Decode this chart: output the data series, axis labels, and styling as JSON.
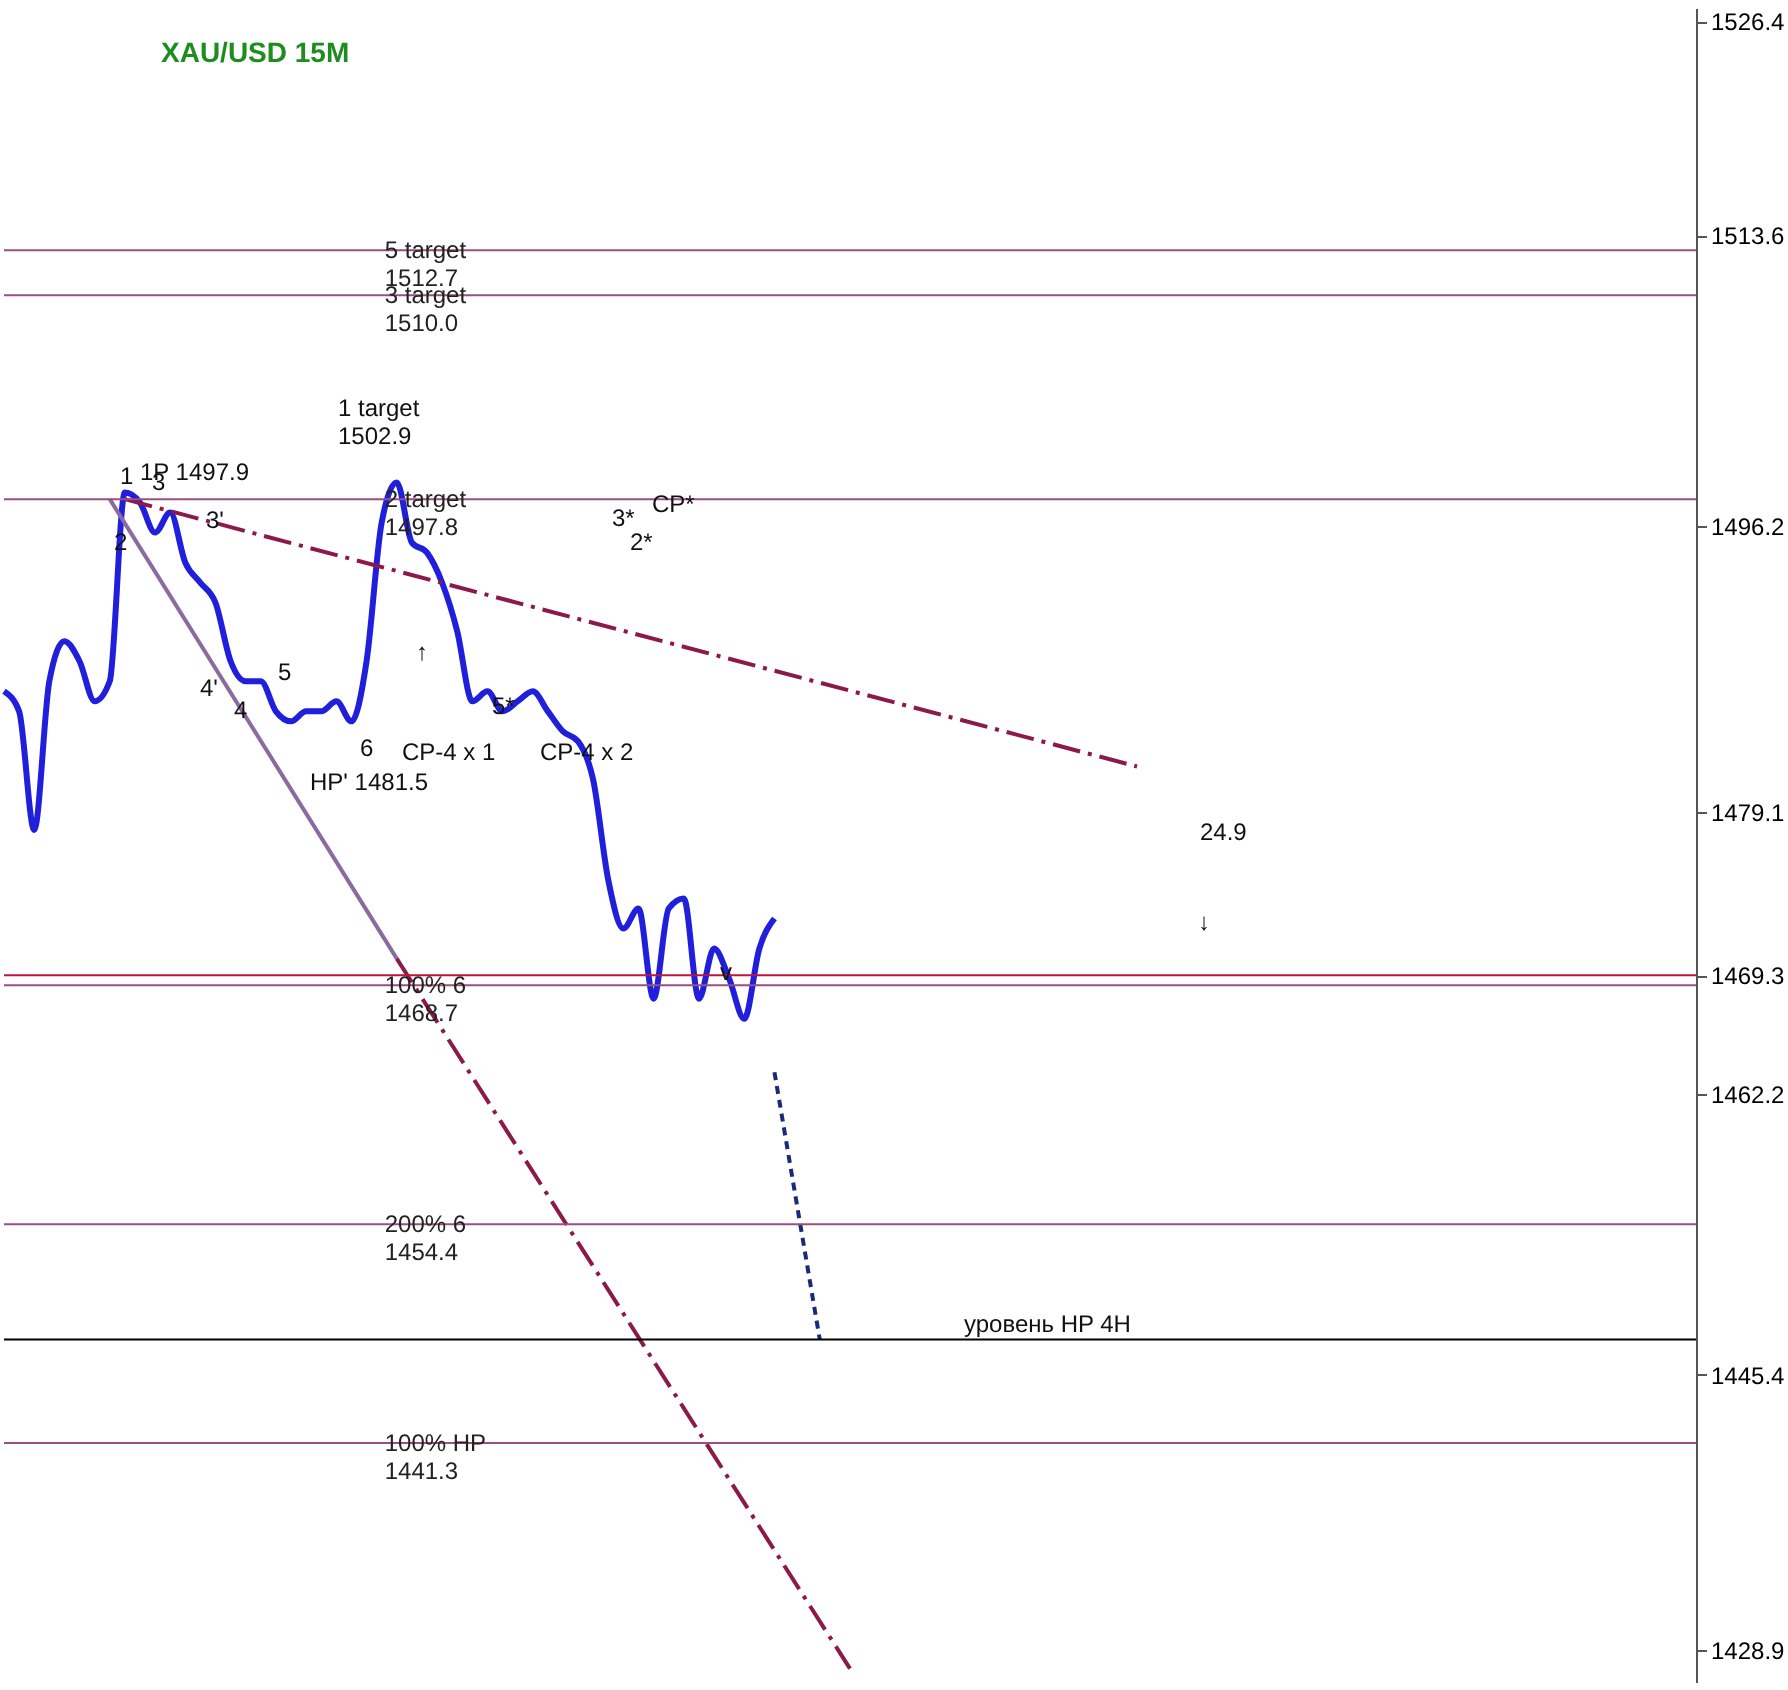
{
  "chart_data": {
    "type": "line",
    "title": "XAU/USD 15M",
    "categories": [
      null,
      null,
      null,
      null,
      null,
      null,
      null,
      null,
      null,
      null,
      null,
      null,
      null,
      null,
      null,
      null,
      null,
      null,
      null,
      null,
      null,
      null,
      null,
      null,
      null,
      null,
      null,
      null,
      null,
      null,
      null,
      null,
      null,
      null,
      null,
      null,
      null,
      null,
      null,
      null,
      null,
      null,
      null,
      null,
      null,
      null,
      null,
      null,
      null,
      null,
      null,
      null,
      null,
      null,
      null,
      null,
      null,
      null,
      null,
      null,
      null,
      null,
      null,
      null,
      null,
      null,
      null,
      null,
      null,
      null,
      null,
      null,
      null,
      null,
      null,
      null,
      null,
      null,
      null,
      null,
      null,
      null,
      null,
      null,
      null,
      null,
      null,
      null,
      null,
      null,
      null,
      null,
      null,
      null,
      null,
      null,
      null,
      null,
      null,
      null,
      null,
      null,
      null,
      null,
      null,
      null,
      null,
      null,
      null,
      null,
      null,
      null,
      null
    ],
    "ylim": [
      1427.0,
      1527.2
    ],
    "yticks": [
      1428.9,
      1445.4,
      1462.2,
      1469.3,
      1479.1,
      1496.2,
      1513.6,
      1526.4
    ],
    "tick_labels": "y",
    "grid": false,
    "marker": "none",
    "series": [
      {
        "color": "#1f1fdc",
        "line_style": "solid",
        "values": [
          1486.3,
          1485.1,
          1478.0,
          1486.9,
          1489.3,
          1488.1,
          1485.7,
          1486.9,
          1498.2,
          1497.6,
          1495.8,
          1497.0,
          1494.0,
          1492.8,
          1491.6,
          1488.1,
          1486.9,
          1486.9,
          1485.1,
          1484.5,
          1485.1,
          1485.1,
          1485.7,
          1484.5,
          1488.1,
          1496.4,
          1498.8,
          1495.2,
          1494.6,
          1492.8,
          1489.9,
          1485.7,
          1486.3,
          1485.1,
          1485.7,
          1486.3,
          1485.1,
          1483.9,
          1483.3,
          1481.0,
          1475.0,
          1472.1,
          1473.3,
          1467.9,
          1473.3,
          1473.9,
          1467.9,
          1470.9,
          1469.1,
          1466.7,
          1470.9,
          1472.7,
          null,
          null,
          null,
          null,
          null,
          null,
          null,
          null,
          null,
          null,
          null,
          null,
          null,
          null,
          null,
          null,
          null,
          null,
          null,
          null,
          null,
          null,
          null,
          null,
          null,
          null,
          null,
          null,
          null,
          null,
          null,
          null,
          null,
          null,
          null,
          null,
          null,
          null,
          null,
          null,
          null,
          null,
          null,
          null,
          null,
          null,
          null,
          null,
          null,
          null,
          null,
          null,
          null,
          null,
          null,
          null,
          null,
          null,
          null,
          null,
          null
        ]
      },
      {
        "color": "#8b1a4a",
        "line_style": "dashed",
        "values": [
          null,
          null,
          null,
          null,
          null,
          null,
          null,
          null,
          1497.8,
          null,
          null,
          null,
          null,
          null,
          null,
          null,
          null,
          null,
          null,
          null,
          null,
          null,
          null,
          null,
          null,
          null,
          null,
          null,
          null,
          null,
          null,
          null,
          null,
          null,
          null,
          null,
          null,
          null,
          null,
          null,
          null,
          null,
          null,
          null,
          null,
          null,
          null,
          null,
          null,
          null,
          null,
          null,
          null,
          null,
          null,
          null,
          null,
          null,
          null,
          null,
          null,
          null,
          null,
          null,
          null,
          null,
          null,
          null,
          null,
          null,
          null,
          null,
          null,
          null,
          null,
          1481.8,
          null,
          null,
          null,
          null,
          null,
          null,
          null,
          null,
          null,
          null,
          null,
          null,
          null,
          null,
          null,
          null,
          null,
          null,
          null,
          null,
          null,
          null,
          null,
          null,
          null,
          null,
          null,
          null,
          null,
          null,
          null,
          null,
          null,
          null,
          null,
          null,
          null
        ]
      },
      {
        "color": "#8b6aa0",
        "line_style": "solid",
        "values": [
          null,
          null,
          null,
          null,
          null,
          null,
          null,
          1497.8,
          null,
          null,
          null,
          null,
          null,
          null,
          null,
          null,
          null,
          null,
          null,
          null,
          null,
          null,
          null,
          null,
          null,
          null,
          1470.3,
          null,
          null,
          null,
          null,
          null,
          null,
          null,
          null,
          null,
          null,
          null,
          null,
          null,
          null,
          null,
          null,
          null,
          null,
          null,
          null,
          null,
          null,
          null,
          null,
          null,
          null,
          null,
          null,
          null,
          null,
          null,
          null,
          null,
          null,
          null,
          null,
          null,
          null,
          null,
          null,
          null,
          null,
          null,
          null,
          null,
          null,
          null,
          null,
          null,
          null,
          null,
          null,
          null,
          null,
          null,
          null,
          null,
          null,
          null,
          null,
          null,
          null,
          null,
          null,
          null,
          null,
          null,
          null,
          null,
          null,
          null,
          null,
          null,
          null,
          null,
          null,
          null,
          null,
          null,
          null,
          null,
          null,
          null,
          null,
          null,
          null
        ]
      },
      {
        "color": "#8b1a4a",
        "line_style": "dashed",
        "values": [
          null,
          null,
          null,
          null,
          null,
          null,
          null,
          null,
          null,
          null,
          null,
          null,
          null,
          null,
          null,
          null,
          null,
          null,
          null,
          null,
          null,
          null,
          null,
          null,
          null,
          null,
          1470.3,
          null,
          null,
          null,
          null,
          null,
          null,
          null,
          null,
          null,
          null,
          null,
          null,
          null,
          null,
          null,
          null,
          null,
          null,
          null,
          null,
          null,
          null,
          null,
          null,
          null,
          null,
          null,
          null,
          null,
          1427.8,
          null,
          null,
          null,
          null,
          null,
          null,
          null,
          null,
          null,
          null,
          null,
          null,
          null,
          null,
          null,
          null,
          null,
          null,
          null,
          null,
          null,
          null,
          null,
          null,
          null,
          null,
          null,
          null,
          null,
          null,
          null,
          null,
          null,
          null,
          null,
          null,
          null,
          null,
          null,
          null,
          null,
          null,
          null,
          null,
          null,
          null,
          null,
          null,
          null,
          null,
          null,
          null,
          null,
          null,
          null,
          null
        ]
      },
      {
        "color": "#1a2a7a",
        "line_style": "dotted",
        "values": [
          null,
          null,
          null,
          null,
          null,
          null,
          null,
          null,
          null,
          null,
          null,
          null,
          null,
          null,
          null,
          null,
          null,
          null,
          null,
          null,
          null,
          null,
          null,
          null,
          null,
          null,
          null,
          null,
          null,
          null,
          null,
          null,
          null,
          null,
          null,
          null,
          null,
          null,
          null,
          null,
          null,
          null,
          null,
          null,
          null,
          null,
          null,
          null,
          null,
          null,
          null,
          1463.5,
          null,
          null,
          1447.5,
          null,
          null,
          null,
          null,
          null,
          null,
          null,
          null,
          null,
          null,
          null,
          null,
          null,
          null,
          null,
          null,
          null,
          null,
          null,
          null,
          null,
          null,
          null,
          null,
          null,
          null,
          null,
          null,
          null,
          null,
          null,
          null,
          null,
          null,
          null,
          null,
          null,
          null,
          null,
          null,
          null,
          null,
          null,
          null,
          null,
          null,
          null,
          null,
          null,
          null,
          null,
          null,
          null,
          null,
          null,
          null,
          null,
          null
        ]
      }
    ],
    "ref_lines": [
      {
        "axis": "y",
        "value": 1512.7,
        "label": "5 target\n1512.7",
        "color": "#9b4f7f"
      },
      {
        "axis": "y",
        "value": 1510.0,
        "label": "3 target\n1510.0",
        "color": "#9b4f7f"
      },
      {
        "axis": "y",
        "value": 1497.8,
        "label": "2 target\n1497.8",
        "color": "#9b4f7f"
      },
      {
        "axis": "y",
        "value": 1469.3,
        "color": "#c0143c"
      },
      {
        "axis": "y",
        "value": 1468.7,
        "label": "100% 6\n1468.7",
        "color": "#9b4f7f"
      },
      {
        "axis": "y",
        "value": 1454.4,
        "label": "200% 6\n1454.4",
        "color": "#9b4f7f"
      },
      {
        "axis": "y",
        "value": 1447.5,
        "color": "#000000"
      },
      {
        "axis": "y",
        "value": 1441.3,
        "label": "100% HP\n1441.3",
        "color": "#9b4f7f"
      }
    ],
    "annotations": [
      "1 target\n1502.9",
      "24.9",
      "уровень HP 4H",
      "1P 1497.9",
      "HP' 1481.5",
      "CP-4 x 1",
      "CP-4 x 2",
      "1",
      "2",
      "3",
      "3'",
      "4'",
      "4",
      "5",
      "6",
      "5*",
      "3*",
      "2*",
      "CP*",
      "↑",
      "↓",
      "v"
    ]
  }
}
